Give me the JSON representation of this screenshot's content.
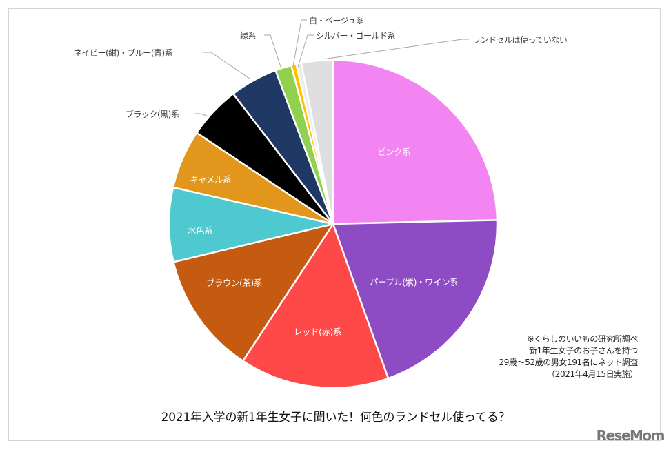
{
  "chart_data": {
    "type": "pie",
    "title": "2021年入学の新1年生女子に聞いた！何色のランドセル使ってる？",
    "start": "top",
    "direction": "clockwise",
    "unit": "%",
    "slices": [
      {
        "label": "ピンク系",
        "value": 24.6,
        "color": "#f285f2"
      },
      {
        "label": "パープル(紫)・ワイン系",
        "value": 19.9,
        "color": "#8e4cc4"
      },
      {
        "label": "レッド(赤)系",
        "value": 14.7,
        "color": "#ff4848"
      },
      {
        "label": "ブラウン(茶)系",
        "value": 12.0,
        "color": "#c55a11"
      },
      {
        "label": "水色系",
        "value": 7.3,
        "color": "#4ec9cf"
      },
      {
        "label": "キャメル系",
        "value": 5.8,
        "color": "#e2961c"
      },
      {
        "label": "ブラック(黒)系",
        "value": 5.2,
        "color": "#000000"
      },
      {
        "label": "ネイビー(紺)・ブルー(青)系",
        "value": 4.7,
        "color": "#1f3864"
      },
      {
        "label": "緑系",
        "value": 1.6,
        "color": "#92d050"
      },
      {
        "label": "白・ベージュ系",
        "value": 0.5,
        "color": "#ffc000"
      },
      {
        "label": "シルバー・ゴールド系",
        "value": 0.5,
        "color": "#ececec"
      },
      {
        "label": "ランドセルは使っていない",
        "value": 3.1,
        "color": "#e0dfdf"
      }
    ]
  },
  "note": [
    "※くらしのいいもの研究所調べ",
    "新1年生女子のお子さんを持つ",
    "29歳～52歳の男女191名にネット調査",
    "（2021年4月15日実施）"
  ],
  "logo": "ReseMom"
}
